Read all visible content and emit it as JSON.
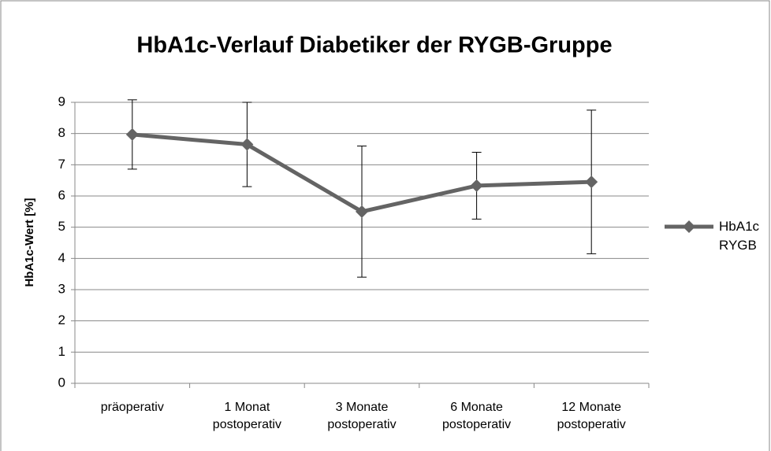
{
  "chart_data": {
    "type": "line",
    "title": "HbA1c-Verlauf Diabetiker der RYGB-Gruppe",
    "y_label": "HbA1c-Wert [%]",
    "categories": [
      "präoperativ",
      "1 Monat postoperativ",
      "3 Monate postoperativ",
      "6 Monate postoperativ",
      "12 Monate postoperativ"
    ],
    "series": [
      {
        "name": "HbA1c RYGB",
        "color": "#646464",
        "values": [
          7.97,
          7.65,
          5.5,
          6.33,
          6.45
        ],
        "errors": [
          1.11,
          1.35,
          2.1,
          1.07,
          2.3
        ]
      }
    ],
    "ylim": [
      0,
      9
    ],
    "yticks": [
      0,
      1,
      2,
      3,
      4,
      5,
      6,
      7,
      8,
      9
    ],
    "grid": true,
    "legend": "right"
  }
}
